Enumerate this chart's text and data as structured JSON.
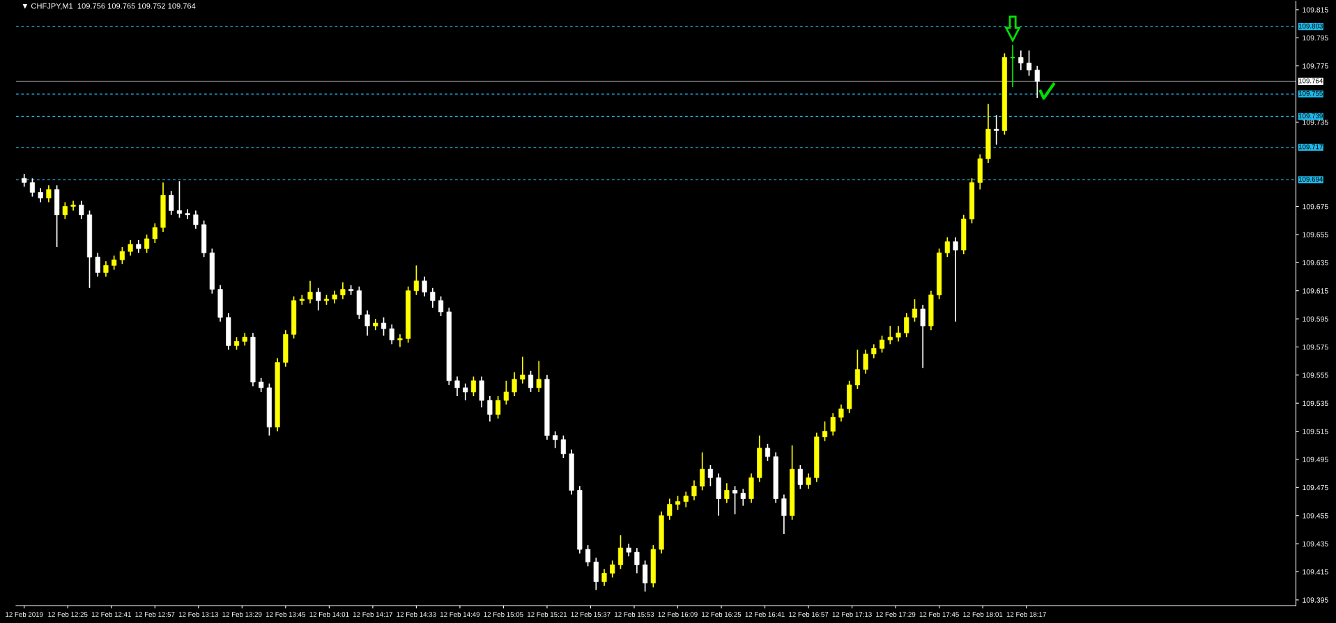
{
  "chart_data": {
    "type": "candlestick",
    "title": "▼ CHFJPY,M1  109.756 109.765 109.752 109.764",
    "x": [
      "2019-02-12T12:09",
      "2019-02-12T12:12",
      "2019-02-12T12:15",
      "2019-02-12T12:18",
      "2019-02-12T12:21",
      "2019-02-12T12:24",
      "2019-02-12T12:27",
      "2019-02-12T12:30",
      "2019-02-12T12:33",
      "2019-02-12T12:36",
      "2019-02-12T12:39",
      "2019-02-12T12:42",
      "2019-02-12T12:45",
      "2019-02-12T12:48",
      "2019-02-12T12:51",
      "2019-02-12T12:54",
      "2019-02-12T12:57",
      "2019-02-12T13:00",
      "2019-02-12T13:03",
      "2019-02-12T13:06",
      "2019-02-12T13:09",
      "2019-02-12T13:12",
      "2019-02-12T13:15",
      "2019-02-12T13:18",
      "2019-02-12T13:21",
      "2019-02-12T13:24",
      "2019-02-12T13:27",
      "2019-02-12T13:30",
      "2019-02-12T13:33",
      "2019-02-12T13:36",
      "2019-02-12T13:39",
      "2019-02-12T13:42",
      "2019-02-12T13:45",
      "2019-02-12T13:48",
      "2019-02-12T13:51",
      "2019-02-12T13:54",
      "2019-02-12T13:57",
      "2019-02-12T14:00",
      "2019-02-12T14:03",
      "2019-02-12T14:06",
      "2019-02-12T14:09",
      "2019-02-12T14:12",
      "2019-02-12T14:15",
      "2019-02-12T14:18",
      "2019-02-12T14:21",
      "2019-02-12T14:24",
      "2019-02-12T14:27",
      "2019-02-12T14:30",
      "2019-02-12T14:33",
      "2019-02-12T14:36",
      "2019-02-12T14:39",
      "2019-02-12T14:42",
      "2019-02-12T14:45",
      "2019-02-12T14:48",
      "2019-02-12T14:51",
      "2019-02-12T14:54",
      "2019-02-12T14:57",
      "2019-02-12T15:00",
      "2019-02-12T15:03",
      "2019-02-12T15:06",
      "2019-02-12T15:09",
      "2019-02-12T15:12",
      "2019-02-12T15:15",
      "2019-02-12T15:18",
      "2019-02-12T15:21",
      "2019-02-12T15:24",
      "2019-02-12T15:27",
      "2019-02-12T15:30",
      "2019-02-12T15:33",
      "2019-02-12T15:36",
      "2019-02-12T15:39",
      "2019-02-12T15:42",
      "2019-02-12T15:45",
      "2019-02-12T15:48",
      "2019-02-12T15:51",
      "2019-02-12T15:54",
      "2019-02-12T15:57",
      "2019-02-12T16:00",
      "2019-02-12T16:03",
      "2019-02-12T16:06",
      "2019-02-12T16:09",
      "2019-02-12T16:12",
      "2019-02-12T16:15",
      "2019-02-12T16:18",
      "2019-02-12T16:21",
      "2019-02-12T16:24",
      "2019-02-12T16:27",
      "2019-02-12T16:30",
      "2019-02-12T16:33",
      "2019-02-12T16:36",
      "2019-02-12T16:39",
      "2019-02-12T16:42",
      "2019-02-12T16:45",
      "2019-02-12T16:48",
      "2019-02-12T16:51",
      "2019-02-12T16:54",
      "2019-02-12T16:57",
      "2019-02-12T17:00",
      "2019-02-12T17:03",
      "2019-02-12T17:06",
      "2019-02-12T17:09",
      "2019-02-12T17:12",
      "2019-02-12T17:15",
      "2019-02-12T17:18",
      "2019-02-12T17:21",
      "2019-02-12T17:24",
      "2019-02-12T17:27",
      "2019-02-12T17:30",
      "2019-02-12T17:33",
      "2019-02-12T17:36",
      "2019-02-12T17:39",
      "2019-02-12T17:42",
      "2019-02-12T17:45",
      "2019-02-12T17:48",
      "2019-02-12T17:51",
      "2019-02-12T17:54",
      "2019-02-12T17:57",
      "2019-02-12T18:00",
      "2019-02-12T18:03",
      "2019-02-12T18:06",
      "2019-02-12T18:09",
      "2019-02-12T18:12",
      "2019-02-12T18:15",
      "2019-02-12T18:18",
      "2019-02-12T18:21"
    ],
    "ohlc": [
      [
        109.695,
        109.698,
        109.689,
        109.692
      ],
      [
        109.692,
        109.695,
        109.682,
        109.685
      ],
      [
        109.685,
        109.688,
        109.678,
        109.681
      ],
      [
        109.681,
        109.69,
        109.678,
        109.687
      ],
      [
        109.687,
        109.69,
        109.646,
        109.669
      ],
      [
        109.669,
        109.678,
        109.666,
        109.675
      ],
      [
        109.675,
        109.679,
        109.672,
        109.676
      ],
      [
        109.676,
        109.679,
        109.666,
        109.669
      ],
      [
        109.669,
        109.672,
        109.617,
        109.639
      ],
      [
        109.639,
        109.642,
        109.625,
        109.628
      ],
      [
        109.628,
        109.636,
        109.625,
        109.633
      ],
      [
        109.633,
        109.64,
        109.63,
        109.637
      ],
      [
        109.637,
        109.646,
        109.634,
        109.643
      ],
      [
        109.643,
        109.651,
        109.64,
        109.648
      ],
      [
        109.648,
        109.651,
        109.642,
        109.645
      ],
      [
        109.645,
        109.655,
        109.642,
        109.652
      ],
      [
        109.652,
        109.663,
        109.649,
        109.66
      ],
      [
        109.66,
        109.692,
        109.657,
        109.683
      ],
      [
        109.683,
        109.686,
        109.669,
        109.672
      ],
      [
        109.672,
        109.693,
        109.667,
        109.67
      ],
      [
        109.67,
        109.673,
        109.666,
        109.669
      ],
      [
        109.669,
        109.672,
        109.659,
        109.662
      ],
      [
        109.662,
        109.665,
        109.639,
        109.642
      ],
      [
        109.642,
        109.645,
        109.613,
        109.616
      ],
      [
        109.616,
        109.619,
        109.593,
        109.596
      ],
      [
        109.596,
        109.599,
        109.573,
        109.576
      ],
      [
        109.576,
        109.582,
        109.573,
        109.579
      ],
      [
        109.579,
        109.585,
        109.576,
        109.582
      ],
      [
        109.582,
        109.585,
        109.547,
        109.55
      ],
      [
        109.55,
        109.553,
        109.543,
        109.546
      ],
      [
        109.546,
        109.549,
        109.512,
        109.518
      ],
      [
        109.518,
        109.567,
        109.515,
        109.564
      ],
      [
        109.564,
        109.587,
        109.561,
        109.584
      ],
      [
        109.584,
        109.611,
        109.581,
        109.608
      ],
      [
        109.608,
        109.612,
        109.605,
        109.609
      ],
      [
        109.609,
        109.622,
        109.606,
        109.614
      ],
      [
        109.614,
        109.617,
        109.601,
        109.608
      ],
      [
        109.608,
        109.612,
        109.605,
        109.609
      ],
      [
        109.609,
        109.615,
        109.606,
        109.612
      ],
      [
        109.612,
        109.621,
        109.609,
        109.616
      ],
      [
        109.616,
        109.619,
        109.612,
        109.615
      ],
      [
        109.615,
        109.618,
        109.595,
        109.598
      ],
      [
        109.598,
        109.601,
        109.583,
        109.59
      ],
      [
        109.59,
        109.595,
        109.587,
        109.592
      ],
      [
        109.592,
        109.596,
        109.583,
        109.588
      ],
      [
        109.588,
        109.591,
        109.577,
        109.58
      ],
      [
        109.58,
        109.584,
        109.575,
        109.581
      ],
      [
        109.581,
        109.618,
        109.578,
        109.615
      ],
      [
        109.615,
        109.633,
        109.612,
        109.622
      ],
      [
        109.622,
        109.625,
        109.611,
        109.614
      ],
      [
        109.614,
        109.617,
        109.603,
        109.608
      ],
      [
        109.608,
        109.611,
        109.597,
        109.6
      ],
      [
        109.6,
        109.603,
        109.548,
        109.551
      ],
      [
        109.551,
        109.554,
        109.54,
        109.546
      ],
      [
        109.546,
        109.549,
        109.537,
        109.543
      ],
      [
        109.543,
        109.554,
        109.54,
        109.551
      ],
      [
        109.551,
        109.554,
        109.532,
        109.537
      ],
      [
        109.537,
        109.54,
        109.522,
        109.527
      ],
      [
        109.527,
        109.54,
        109.524,
        109.537
      ],
      [
        109.537,
        109.551,
        109.534,
        109.543
      ],
      [
        109.543,
        109.557,
        109.54,
        109.552
      ],
      [
        109.552,
        109.568,
        109.549,
        109.555
      ],
      [
        109.555,
        109.558,
        109.543,
        109.546
      ],
      [
        109.546,
        109.565,
        109.543,
        109.552
      ],
      [
        109.552,
        109.555,
        109.509,
        109.512
      ],
      [
        109.512,
        109.515,
        109.503,
        109.509
      ],
      [
        109.509,
        109.512,
        109.496,
        109.499
      ],
      [
        109.499,
        109.502,
        109.47,
        109.473
      ],
      [
        109.473,
        109.476,
        109.428,
        109.431
      ],
      [
        109.431,
        109.434,
        109.419,
        109.422
      ],
      [
        109.422,
        109.425,
        109.402,
        109.408
      ],
      [
        109.408,
        109.417,
        109.405,
        109.414
      ],
      [
        109.414,
        109.423,
        109.411,
        109.42
      ],
      [
        109.42,
        109.441,
        109.417,
        109.432
      ],
      [
        109.432,
        109.435,
        109.426,
        109.429
      ],
      [
        109.429,
        109.432,
        109.414,
        109.42
      ],
      [
        109.42,
        109.423,
        109.401,
        109.407
      ],
      [
        109.407,
        109.434,
        109.404,
        109.431
      ],
      [
        109.431,
        109.458,
        109.428,
        109.455
      ],
      [
        109.455,
        109.467,
        109.452,
        109.463
      ],
      [
        109.463,
        109.469,
        109.459,
        109.465
      ],
      [
        109.465,
        109.472,
        109.461,
        109.469
      ],
      [
        109.469,
        109.48,
        109.466,
        109.476
      ],
      [
        109.476,
        109.5,
        109.473,
        109.488
      ],
      [
        109.488,
        109.491,
        109.476,
        109.482
      ],
      [
        109.482,
        109.485,
        109.455,
        109.467
      ],
      [
        109.467,
        109.478,
        109.464,
        109.473
      ],
      [
        109.473,
        109.476,
        109.456,
        109.471
      ],
      [
        109.471,
        109.474,
        109.462,
        109.467
      ],
      [
        109.467,
        109.485,
        109.464,
        109.482
      ],
      [
        109.482,
        109.512,
        109.479,
        109.503
      ],
      [
        109.503,
        109.506,
        109.494,
        109.497
      ],
      [
        109.497,
        109.5,
        109.464,
        109.467
      ],
      [
        109.467,
        109.47,
        109.442,
        109.455
      ],
      [
        109.455,
        109.505,
        109.452,
        109.488
      ],
      [
        109.488,
        109.491,
        109.474,
        109.477
      ],
      [
        109.477,
        109.485,
        109.474,
        109.482
      ],
      [
        109.482,
        109.514,
        109.479,
        109.511
      ],
      [
        109.511,
        109.522,
        109.508,
        109.515
      ],
      [
        109.515,
        109.528,
        109.512,
        109.525
      ],
      [
        109.525,
        109.534,
        109.522,
        109.531
      ],
      [
        109.531,
        109.551,
        109.528,
        109.548
      ],
      [
        109.548,
        109.573,
        109.545,
        109.559
      ],
      [
        109.559,
        109.573,
        109.556,
        109.57
      ],
      [
        109.57,
        109.577,
        109.567,
        109.574
      ],
      [
        109.574,
        109.583,
        109.571,
        109.58
      ],
      [
        109.58,
        109.59,
        109.577,
        109.582
      ],
      [
        109.582,
        109.59,
        109.579,
        109.585
      ],
      [
        109.585,
        109.599,
        109.582,
        109.596
      ],
      [
        109.596,
        109.609,
        109.593,
        109.602
      ],
      [
        109.602,
        109.605,
        109.56,
        109.59
      ],
      [
        109.59,
        109.615,
        109.587,
        109.612
      ],
      [
        109.612,
        109.645,
        109.609,
        109.642
      ],
      [
        109.642,
        109.653,
        109.639,
        109.65
      ],
      [
        109.65,
        109.653,
        109.593,
        109.644
      ],
      [
        109.644,
        109.669,
        109.641,
        109.666
      ],
      [
        109.666,
        109.695,
        109.663,
        109.692
      ],
      [
        109.692,
        109.712,
        109.687,
        109.709
      ],
      [
        109.709,
        109.748,
        109.706,
        109.73
      ],
      [
        109.73,
        109.74,
        109.719,
        109.729
      ],
      [
        109.729,
        109.784,
        109.726,
        109.781
      ],
      [
        109.781,
        109.79,
        109.76,
        109.781
      ],
      [
        109.781,
        109.786,
        109.772,
        109.777
      ],
      [
        109.777,
        109.786,
        109.768,
        109.772
      ],
      [
        109.772,
        109.775,
        109.752,
        109.764
      ]
    ],
    "colors": [
      "#ffffff",
      "#ffffff",
      "#ffffff",
      "#ffff00",
      "#ffffff",
      "#ffff00",
      "#ffff00",
      "#ffffff",
      "#ffffff",
      "#ffffff",
      "#ffff00",
      "#ffff00",
      "#ffff00",
      "#ffff00",
      "#ffffff",
      "#ffff00",
      "#ffff00",
      "#ffff00",
      "#ffffff",
      "#ffffff",
      "#ffffff",
      "#ffffff",
      "#ffffff",
      "#ffffff",
      "#ffffff",
      "#ffffff",
      "#ffff00",
      "#ffff00",
      "#ffffff",
      "#ffffff",
      "#ffffff",
      "#ffff00",
      "#ffff00",
      "#ffff00",
      "#ffff00",
      "#ffff00",
      "#ffffff",
      "#ffff00",
      "#ffff00",
      "#ffff00",
      "#ffffff",
      "#ffffff",
      "#ffffff",
      "#ffff00",
      "#ffffff",
      "#ffffff",
      "#ffff00",
      "#ffff00",
      "#ffff00",
      "#ffffff",
      "#ffffff",
      "#ffffff",
      "#ffffff",
      "#ffffff",
      "#ffffff",
      "#ffff00",
      "#ffffff",
      "#ffffff",
      "#ffff00",
      "#ffff00",
      "#ffff00",
      "#ffff00",
      "#ffffff",
      "#ffff00",
      "#ffffff",
      "#ffffff",
      "#ffffff",
      "#ffffff",
      "#ffffff",
      "#ffffff",
      "#ffffff",
      "#ffff00",
      "#ffff00",
      "#ffff00",
      "#ffffff",
      "#ffffff",
      "#ffffff",
      "#ffff00",
      "#ffff00",
      "#ffff00",
      "#ffff00",
      "#ffff00",
      "#ffff00",
      "#ffff00",
      "#ffffff",
      "#ffffff",
      "#ffff00",
      "#ffffff",
      "#ffffff",
      "#ffff00",
      "#ffff00",
      "#ffffff",
      "#ffffff",
      "#ffffff",
      "#ffff00",
      "#ffffff",
      "#ffff00",
      "#ffff00",
      "#ffff00",
      "#ffff00",
      "#ffff00",
      "#ffff00",
      "#ffff00",
      "#ffff00",
      "#ffff00",
      "#ffff00",
      "#ffff00",
      "#ffff00",
      "#ffff00",
      "#ffff00",
      "#ffffff",
      "#ffff00",
      "#ffff00",
      "#ffff00",
      "#ffffff",
      "#ffff00",
      "#ffff00",
      "#ffff00",
      "#ffff00",
      "#ffffff",
      "#ffff00",
      "#00ff00",
      "#ffffff",
      "#ffffff",
      "#ffffff"
    ],
    "xlim": [
      "2019-02-12T12:06",
      "2019-02-12T19:56"
    ],
    "xticks": [
      {
        "value": "2019-02-12T12:09",
        "label": "12 Feb 2019"
      },
      {
        "value": "2019-02-12T12:25",
        "label": "12 Feb 12:25"
      },
      {
        "value": "2019-02-12T12:41",
        "label": "12 Feb 12:41"
      },
      {
        "value": "2019-02-12T12:57",
        "label": "12 Feb 12:57"
      },
      {
        "value": "2019-02-12T13:13",
        "label": "12 Feb 13:13"
      },
      {
        "value": "2019-02-12T13:29",
        "label": "12 Feb 13:29"
      },
      {
        "value": "2019-02-12T13:45",
        "label": "12 Feb 13:45"
      },
      {
        "value": "2019-02-12T14:01",
        "label": "12 Feb 14:01"
      },
      {
        "value": "2019-02-12T14:17",
        "label": "12 Feb 14:17"
      },
      {
        "value": "2019-02-12T14:33",
        "label": "12 Feb 14:33"
      },
      {
        "value": "2019-02-12T14:49",
        "label": "12 Feb 14:49"
      },
      {
        "value": "2019-02-12T15:05",
        "label": "12 Feb 15:05"
      },
      {
        "value": "2019-02-12T15:21",
        "label": "12 Feb 15:21"
      },
      {
        "value": "2019-02-12T15:37",
        "label": "12 Feb 15:37"
      },
      {
        "value": "2019-02-12T15:53",
        "label": "12 Feb 15:53"
      },
      {
        "value": "2019-02-12T16:09",
        "label": "12 Feb 16:09"
      },
      {
        "value": "2019-02-12T16:25",
        "label": "12 Feb 16:25"
      },
      {
        "value": "2019-02-12T16:41",
        "label": "12 Feb 16:41"
      },
      {
        "value": "2019-02-12T16:57",
        "label": "12 Feb 16:57"
      },
      {
        "value": "2019-02-12T17:13",
        "label": "12 Feb 17:13"
      },
      {
        "value": "2019-02-12T17:29",
        "label": "12 Feb 17:29"
      },
      {
        "value": "2019-02-12T17:45",
        "label": "12 Feb 17:45"
      },
      {
        "value": "2019-02-12T18:01",
        "label": "12 Feb 18:01"
      },
      {
        "value": "2019-02-12T18:17",
        "label": "12 Feb 18:17"
      }
    ],
    "ylim": [
      109.391,
      109.821
    ],
    "yticks": [
      109.395,
      109.415,
      109.435,
      109.455,
      109.475,
      109.495,
      109.515,
      109.535,
      109.555,
      109.575,
      109.595,
      109.615,
      109.635,
      109.655,
      109.675,
      109.735,
      109.775,
      109.795,
      109.815
    ],
    "ref_lines": [
      {
        "axis": "y",
        "value": 109.803,
        "label": "109.803",
        "color": "#1fb8e8",
        "line_style": "dashed"
      },
      {
        "axis": "y",
        "value": 109.764,
        "label": "109.764",
        "color": "#a0a0a0",
        "line_style": "solid"
      },
      {
        "axis": "y",
        "value": 109.755,
        "label": "109.755",
        "color": "#1fb8e8",
        "line_style": "dashed"
      },
      {
        "axis": "y",
        "value": 109.739,
        "label": "109.739",
        "color": "#1fb8e8",
        "line_style": "dashed"
      },
      {
        "axis": "y",
        "value": 109.717,
        "label": "109.717",
        "color": "#1fb8e8",
        "line_style": "dashed"
      },
      {
        "axis": "y",
        "value": 109.694,
        "label": "109.694",
        "color": "#1fb8e8",
        "line_style": "dashed"
      }
    ],
    "grid": false,
    "legend": false
  }
}
